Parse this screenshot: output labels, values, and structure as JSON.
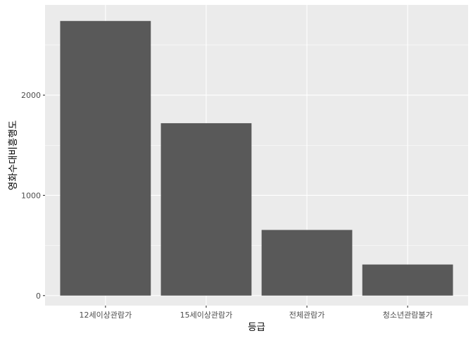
{
  "chart_data": {
    "type": "bar",
    "categories": [
      "12세이상관람가",
      "15세이상관람가",
      "전체관람가",
      "청소년관람불가"
    ],
    "values": [
      2740,
      1720,
      655,
      310
    ],
    "xlabel": "등급",
    "ylabel": "영화수대비흥행도",
    "ylim": [
      -100,
      2900
    ],
    "yticks": [
      0,
      1000,
      2000
    ],
    "ytick_labels": [
      "0",
      "1000",
      "2000"
    ],
    "grid": true,
    "colors": {
      "panel": "#ebebeb",
      "grid_major": "#ffffff",
      "bar": "#595959",
      "tick_text": "#4d4d4d"
    }
  }
}
